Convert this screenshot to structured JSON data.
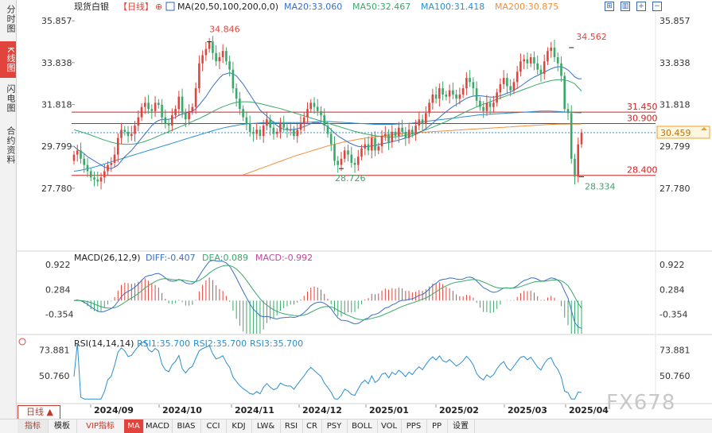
{
  "sidebar": {
    "tabs": [
      {
        "label": "分时图",
        "active": false
      },
      {
        "label": "K线图",
        "active": true
      },
      {
        "label": "闪电图",
        "active": false
      },
      {
        "label": "合约资料",
        "active": false
      }
    ]
  },
  "header": {
    "symbol": "现货白银",
    "period": "【日线】",
    "settings_glyph": "⊕",
    "ma_label": "MA(20,50,100,200,0,0)",
    "ma20": "MA20:33.060",
    "ma50": "MA50:32.467",
    "ma100": "MA100:31.418",
    "ma200": "MA200:30.875"
  },
  "macd_header": {
    "label": "MACD(26,12,9)",
    "diff": "DIFF:-0.407",
    "dea": "DEA:0.089",
    "macd": "MACD:-0.992"
  },
  "rsi_header": {
    "label": "RSI(14,14,14)",
    "rsi1": "RSI1:35.700",
    "rsi2": "RSI2:35.700",
    "rsi3": "RSI3:35.700"
  },
  "price_axis": {
    "ticks": [
      "35.857",
      "33.838",
      "31.818",
      "29.799",
      "27.780"
    ],
    "tick_values": [
      35.857,
      33.838,
      31.818,
      29.799,
      27.78
    ]
  },
  "macd_axis": {
    "ticks": [
      "0.922",
      "0.284",
      "-0.354"
    ],
    "tick_values": [
      0.922,
      0.284,
      -0.354
    ]
  },
  "rsi_axis": {
    "ticks": [
      "73.881",
      "50.760"
    ],
    "tick_values": [
      73.881,
      50.76
    ]
  },
  "current_price": "30.459",
  "horizontal_lines": [
    {
      "label": "31.450",
      "value": 31.45
    },
    {
      "label": "30.900",
      "value": 30.9
    },
    {
      "label": "28.400",
      "value": 28.4
    }
  ],
  "annotations": [
    {
      "label": "34.846",
      "value": 34.846,
      "color": "#e0443c"
    },
    {
      "label": "34.562",
      "value": 34.562,
      "color": "#e0443c"
    },
    {
      "label": "28.726",
      "value": 28.726,
      "color": "#3aa86a"
    },
    {
      "label": "28.334",
      "value": 28.334,
      "color": "#3aa86a"
    }
  ],
  "x_axis": {
    "labels": [
      "2024/09",
      "2024/10",
      "2024/11",
      "2024/12",
      "2025/01",
      "2025/02",
      "2025/03",
      "2025/04"
    ]
  },
  "period_selector": {
    "label": "日线 ▲"
  },
  "toolbar": {
    "items": [
      "指标",
      "模板",
      "VIP指标",
      "MA",
      "MACD",
      "BIAS",
      "CCI",
      "KDJ",
      "LW&",
      "RSI",
      "CR",
      "PSY",
      "BOLL",
      "VOL",
      "PPS",
      "PP",
      "设置"
    ],
    "active": "MA"
  },
  "watermark": "FX678",
  "colors": {
    "up": "#e0443c",
    "down": "#3aa86a",
    "ma20": "#3a6fc4",
    "ma50": "#3aa86a",
    "ma100": "#2a8fd0",
    "ma200": "#f0903c",
    "hline": "#d22020",
    "current": "#f0a020"
  },
  "chart_data": [
    {
      "type": "candlestick",
      "title": "现货白银 日线",
      "x_labels": [
        "2024/09",
        "2024/10",
        "2024/11",
        "2024/12",
        "2025/01",
        "2025/02",
        "2025/03",
        "2025/04"
      ],
      "ylim": [
        27.2,
        36.4
      ],
      "close": [
        29.4,
        29.6,
        29.2,
        28.9,
        28.6,
        28.3,
        28.2,
        28.1,
        28.3,
        28.6,
        28.9,
        29.0,
        29.4,
        30.2,
        30.6,
        30.5,
        30.3,
        30.4,
        30.8,
        31.2,
        31.7,
        31.9,
        31.6,
        31.5,
        31.9,
        31.8,
        31.2,
        30.9,
        30.8,
        31.3,
        31.6,
        32.2,
        31.4,
        31.1,
        31.5,
        31.7,
        32.6,
        33.8,
        34.2,
        34.5,
        34.846,
        34.3,
        33.9,
        34.1,
        34.4,
        33.9,
        33.5,
        32.6,
        32.1,
        31.6,
        31.2,
        30.9,
        30.5,
        30.4,
        30.6,
        30.3,
        30.8,
        31.1,
        30.7,
        30.4,
        30.5,
        30.9,
        30.7,
        30.6,
        30.6,
        30.3,
        30.6,
        30.9,
        31.2,
        31.6,
        31.9,
        31.7,
        31.5,
        31.3,
        30.8,
        30.4,
        29.9,
        29.1,
        28.9,
        29.2,
        29.6,
        29.4,
        29.0,
        28.9,
        29.3,
        29.7,
        29.9,
        29.6,
        30.2,
        29.6,
        29.8,
        30.3,
        30.4,
        30.0,
        30.5,
        30.3,
        30.7,
        30.5,
        30.2,
        30.6,
        30.4,
        30.8,
        31.1,
        30.9,
        31.4,
        31.9,
        32.3,
        32.1,
        32.6,
        32.3,
        32.2,
        32.5,
        32.3,
        32.1,
        32.3,
        32.6,
        33.1,
        32.9,
        32.6,
        32.0,
        31.7,
        31.5,
        31.9,
        31.7,
        31.9,
        32.4,
        32.8,
        33.1,
        32.7,
        32.5,
        32.9,
        33.4,
        33.9,
        34.0,
        33.8,
        34.1,
        33.8,
        33.5,
        33.3,
        33.9,
        34.4,
        34.562,
        34.1,
        33.8,
        33.2,
        31.6,
        31.4,
        29.2,
        28.334,
        29.9,
        30.459
      ],
      "ma20": [
        29.8,
        29.65,
        29.55,
        29.45,
        29.3,
        29.2,
        29.1,
        29.0,
        28.9,
        28.8,
        28.75,
        28.72,
        28.8,
        28.9,
        29.1,
        29.3,
        29.45,
        29.6,
        29.8,
        30.0,
        30.2,
        30.4,
        30.6,
        30.8,
        30.95,
        31.05,
        31.1,
        31.1,
        31.1,
        31.15,
        31.2,
        31.3,
        31.35,
        31.4,
        31.45,
        31.5,
        31.6,
        31.8,
        32.0,
        32.2,
        32.45,
        32.7,
        32.9,
        33.1,
        33.25,
        33.3,
        33.35,
        33.3,
        33.2,
        33.0,
        32.8,
        32.55,
        32.3,
        32.05,
        31.8,
        31.55,
        31.4,
        31.25,
        31.1,
        30.95,
        30.8,
        30.7,
        30.62,
        30.6,
        30.6,
        30.62,
        30.65,
        30.7,
        30.75,
        30.82,
        30.9,
        30.95,
        30.95,
        30.92,
        30.85,
        30.75,
        30.6,
        30.45,
        30.3,
        30.2,
        30.1,
        30.0,
        29.92,
        29.85,
        29.8,
        29.78,
        29.78,
        29.8,
        29.82,
        29.85,
        29.88,
        29.92,
        29.95,
        29.98,
        30.02,
        30.06,
        30.1,
        30.15,
        30.2,
        30.26,
        30.32,
        30.38,
        30.46,
        30.55,
        30.65,
        30.78,
        30.92,
        31.06,
        31.2,
        31.34,
        31.47,
        31.6,
        31.72,
        31.82,
        31.92,
        32.02,
        32.12,
        32.18,
        32.22,
        32.24,
        32.24,
        32.22,
        32.2,
        32.18,
        32.18,
        32.2,
        32.24,
        32.3,
        32.36,
        32.42,
        32.5,
        32.6,
        32.7,
        32.82,
        32.94,
        33.05,
        33.14,
        33.22,
        33.3,
        33.38,
        33.46,
        33.54,
        33.6,
        33.64,
        33.64,
        33.58,
        33.48,
        33.32,
        33.15,
        33.06,
        33.06
      ],
      "ma50": [
        30.6,
        30.55,
        30.5,
        30.45,
        30.4,
        30.34,
        30.28,
        30.22,
        30.16,
        30.1,
        30.05,
        30.0,
        29.96,
        29.93,
        29.91,
        29.9,
        29.9,
        29.9,
        29.92,
        29.95,
        29.99,
        30.04,
        30.1,
        30.16,
        30.23,
        30.3,
        30.37,
        30.44,
        30.51,
        30.58,
        30.65,
        30.72,
        30.79,
        30.86,
        30.93,
        31.0,
        31.07,
        31.14,
        31.22,
        31.3,
        31.39,
        31.48,
        31.56,
        31.64,
        31.71,
        31.77,
        31.83,
        31.88,
        31.92,
        31.94,
        31.95,
        31.95,
        31.94,
        31.92,
        31.89,
        31.86,
        31.82,
        31.78,
        31.74,
        31.7,
        31.66,
        31.62,
        31.57,
        31.52,
        31.47,
        31.42,
        31.37,
        31.32,
        31.27,
        31.22,
        31.17,
        31.12,
        31.07,
        31.02,
        30.97,
        30.92,
        30.87,
        30.82,
        30.77,
        30.72,
        30.67,
        30.62,
        30.57,
        30.52,
        30.48,
        30.44,
        30.4,
        30.37,
        30.34,
        30.31,
        30.29,
        30.27,
        30.26,
        30.25,
        30.25,
        30.26,
        30.28,
        30.3,
        30.33,
        30.36,
        30.4,
        30.44,
        30.49,
        30.54,
        30.6,
        30.66,
        30.72,
        30.79,
        30.86,
        30.93,
        31.0,
        31.08,
        31.16,
        31.24,
        31.32,
        31.4,
        31.48,
        31.56,
        31.63,
        31.7,
        31.77,
        31.83,
        31.89,
        31.95,
        32.01,
        32.07,
        32.13,
        32.19,
        32.25,
        32.31,
        32.37,
        32.43,
        32.49,
        32.55,
        32.61,
        32.67,
        32.73,
        32.79,
        32.84,
        32.89,
        32.93,
        32.97,
        33.0,
        33.02,
        33.02,
        33.0,
        32.96,
        32.9,
        32.82,
        32.64,
        32.467
      ],
      "ma100": [
        28.6,
        28.62,
        28.65,
        28.68,
        28.72,
        28.76,
        28.8,
        28.85,
        28.9,
        28.95,
        29.0,
        29.05,
        29.1,
        29.15,
        29.2,
        29.25,
        29.3,
        29.35,
        29.4,
        29.45,
        29.5,
        29.55,
        29.6,
        29.65,
        29.7,
        29.75,
        29.8,
        29.85,
        29.9,
        29.95,
        30.0,
        30.05,
        30.1,
        30.15,
        30.2,
        30.25,
        30.3,
        30.35,
        30.4,
        30.45,
        30.5,
        30.55,
        30.6,
        30.64,
        30.68,
        30.72,
        30.75,
        30.78,
        30.81,
        30.84,
        30.86,
        30.88,
        30.9,
        30.91,
        30.92,
        30.93,
        30.94,
        30.95,
        30.95,
        30.95,
        30.95,
        30.95,
        30.95,
        30.95,
        30.95,
        30.95,
        30.95,
        30.95,
        30.95,
        30.96,
        30.97,
        30.98,
        30.99,
        31.0,
        31.0,
        31.0,
        30.99,
        30.98,
        30.97,
        30.96,
        30.95,
        30.94,
        30.93,
        30.92,
        30.91,
        30.9,
        30.89,
        30.88,
        30.87,
        30.86,
        30.86,
        30.86,
        30.86,
        30.86,
        30.86,
        30.87,
        30.88,
        30.89,
        30.9,
        30.91,
        30.92,
        30.94,
        30.96,
        30.98,
        31.0,
        31.02,
        31.04,
        31.06,
        31.08,
        31.1,
        31.12,
        31.14,
        31.16,
        31.18,
        31.2,
        31.22,
        31.24,
        31.26,
        31.28,
        31.3,
        31.32,
        31.33,
        31.34,
        31.35,
        31.36,
        31.37,
        31.38,
        31.39,
        31.4,
        31.41,
        31.42,
        31.43,
        31.44,
        31.45,
        31.46,
        31.47,
        31.48,
        31.49,
        31.5,
        31.5,
        31.5,
        31.5,
        31.49,
        31.48,
        31.47,
        31.46,
        31.45,
        31.44,
        31.43,
        31.42,
        31.418
      ],
      "ma200": [
        null,
        null,
        null,
        null,
        null,
        null,
        null,
        null,
        null,
        null,
        null,
        null,
        null,
        null,
        null,
        null,
        null,
        null,
        null,
        null,
        null,
        null,
        null,
        null,
        null,
        null,
        null,
        null,
        null,
        null,
        null,
        null,
        null,
        null,
        null,
        null,
        null,
        null,
        null,
        null,
        null,
        null,
        null,
        null,
        null,
        null,
        null,
        null,
        null,
        null,
        28.42,
        28.48,
        28.54,
        28.6,
        28.66,
        28.72,
        28.78,
        28.84,
        28.9,
        28.96,
        29.02,
        29.08,
        29.14,
        29.2,
        29.26,
        29.32,
        29.37,
        29.42,
        29.47,
        29.52,
        29.57,
        29.62,
        29.67,
        29.72,
        29.77,
        29.82,
        29.86,
        29.9,
        29.94,
        29.98,
        30.02,
        30.05,
        30.08,
        30.11,
        30.14,
        30.17,
        30.2,
        30.22,
        30.24,
        30.26,
        30.28,
        30.3,
        30.32,
        30.34,
        30.36,
        30.38,
        30.4,
        30.42,
        30.43,
        30.44,
        30.45,
        30.46,
        30.47,
        30.48,
        30.49,
        30.5,
        30.51,
        30.52,
        30.53,
        30.54,
        30.55,
        30.56,
        30.57,
        30.58,
        30.59,
        30.6,
        30.61,
        30.62,
        30.63,
        30.64,
        30.65,
        30.66,
        30.67,
        30.68,
        30.69,
        30.7,
        30.71,
        30.72,
        30.73,
        30.74,
        30.75,
        30.76,
        30.77,
        30.78,
        30.79,
        30.8,
        30.81,
        30.82,
        30.83,
        30.84,
        30.85,
        30.86,
        30.86,
        30.87,
        30.87,
        30.87,
        30.875,
        30.875,
        30.875,
        30.875,
        30.875
      ]
    },
    {
      "type": "bar",
      "title": "MACD(26,12,9)",
      "ylim": [
        -0.85,
        1.15
      ],
      "diff_final": -0.407,
      "dea_final": 0.089,
      "macd_final": -0.992
    },
    {
      "type": "line",
      "title": "RSI(14,14,14)",
      "ylim": [
        28,
        84
      ],
      "rsi_final": 35.7
    }
  ]
}
